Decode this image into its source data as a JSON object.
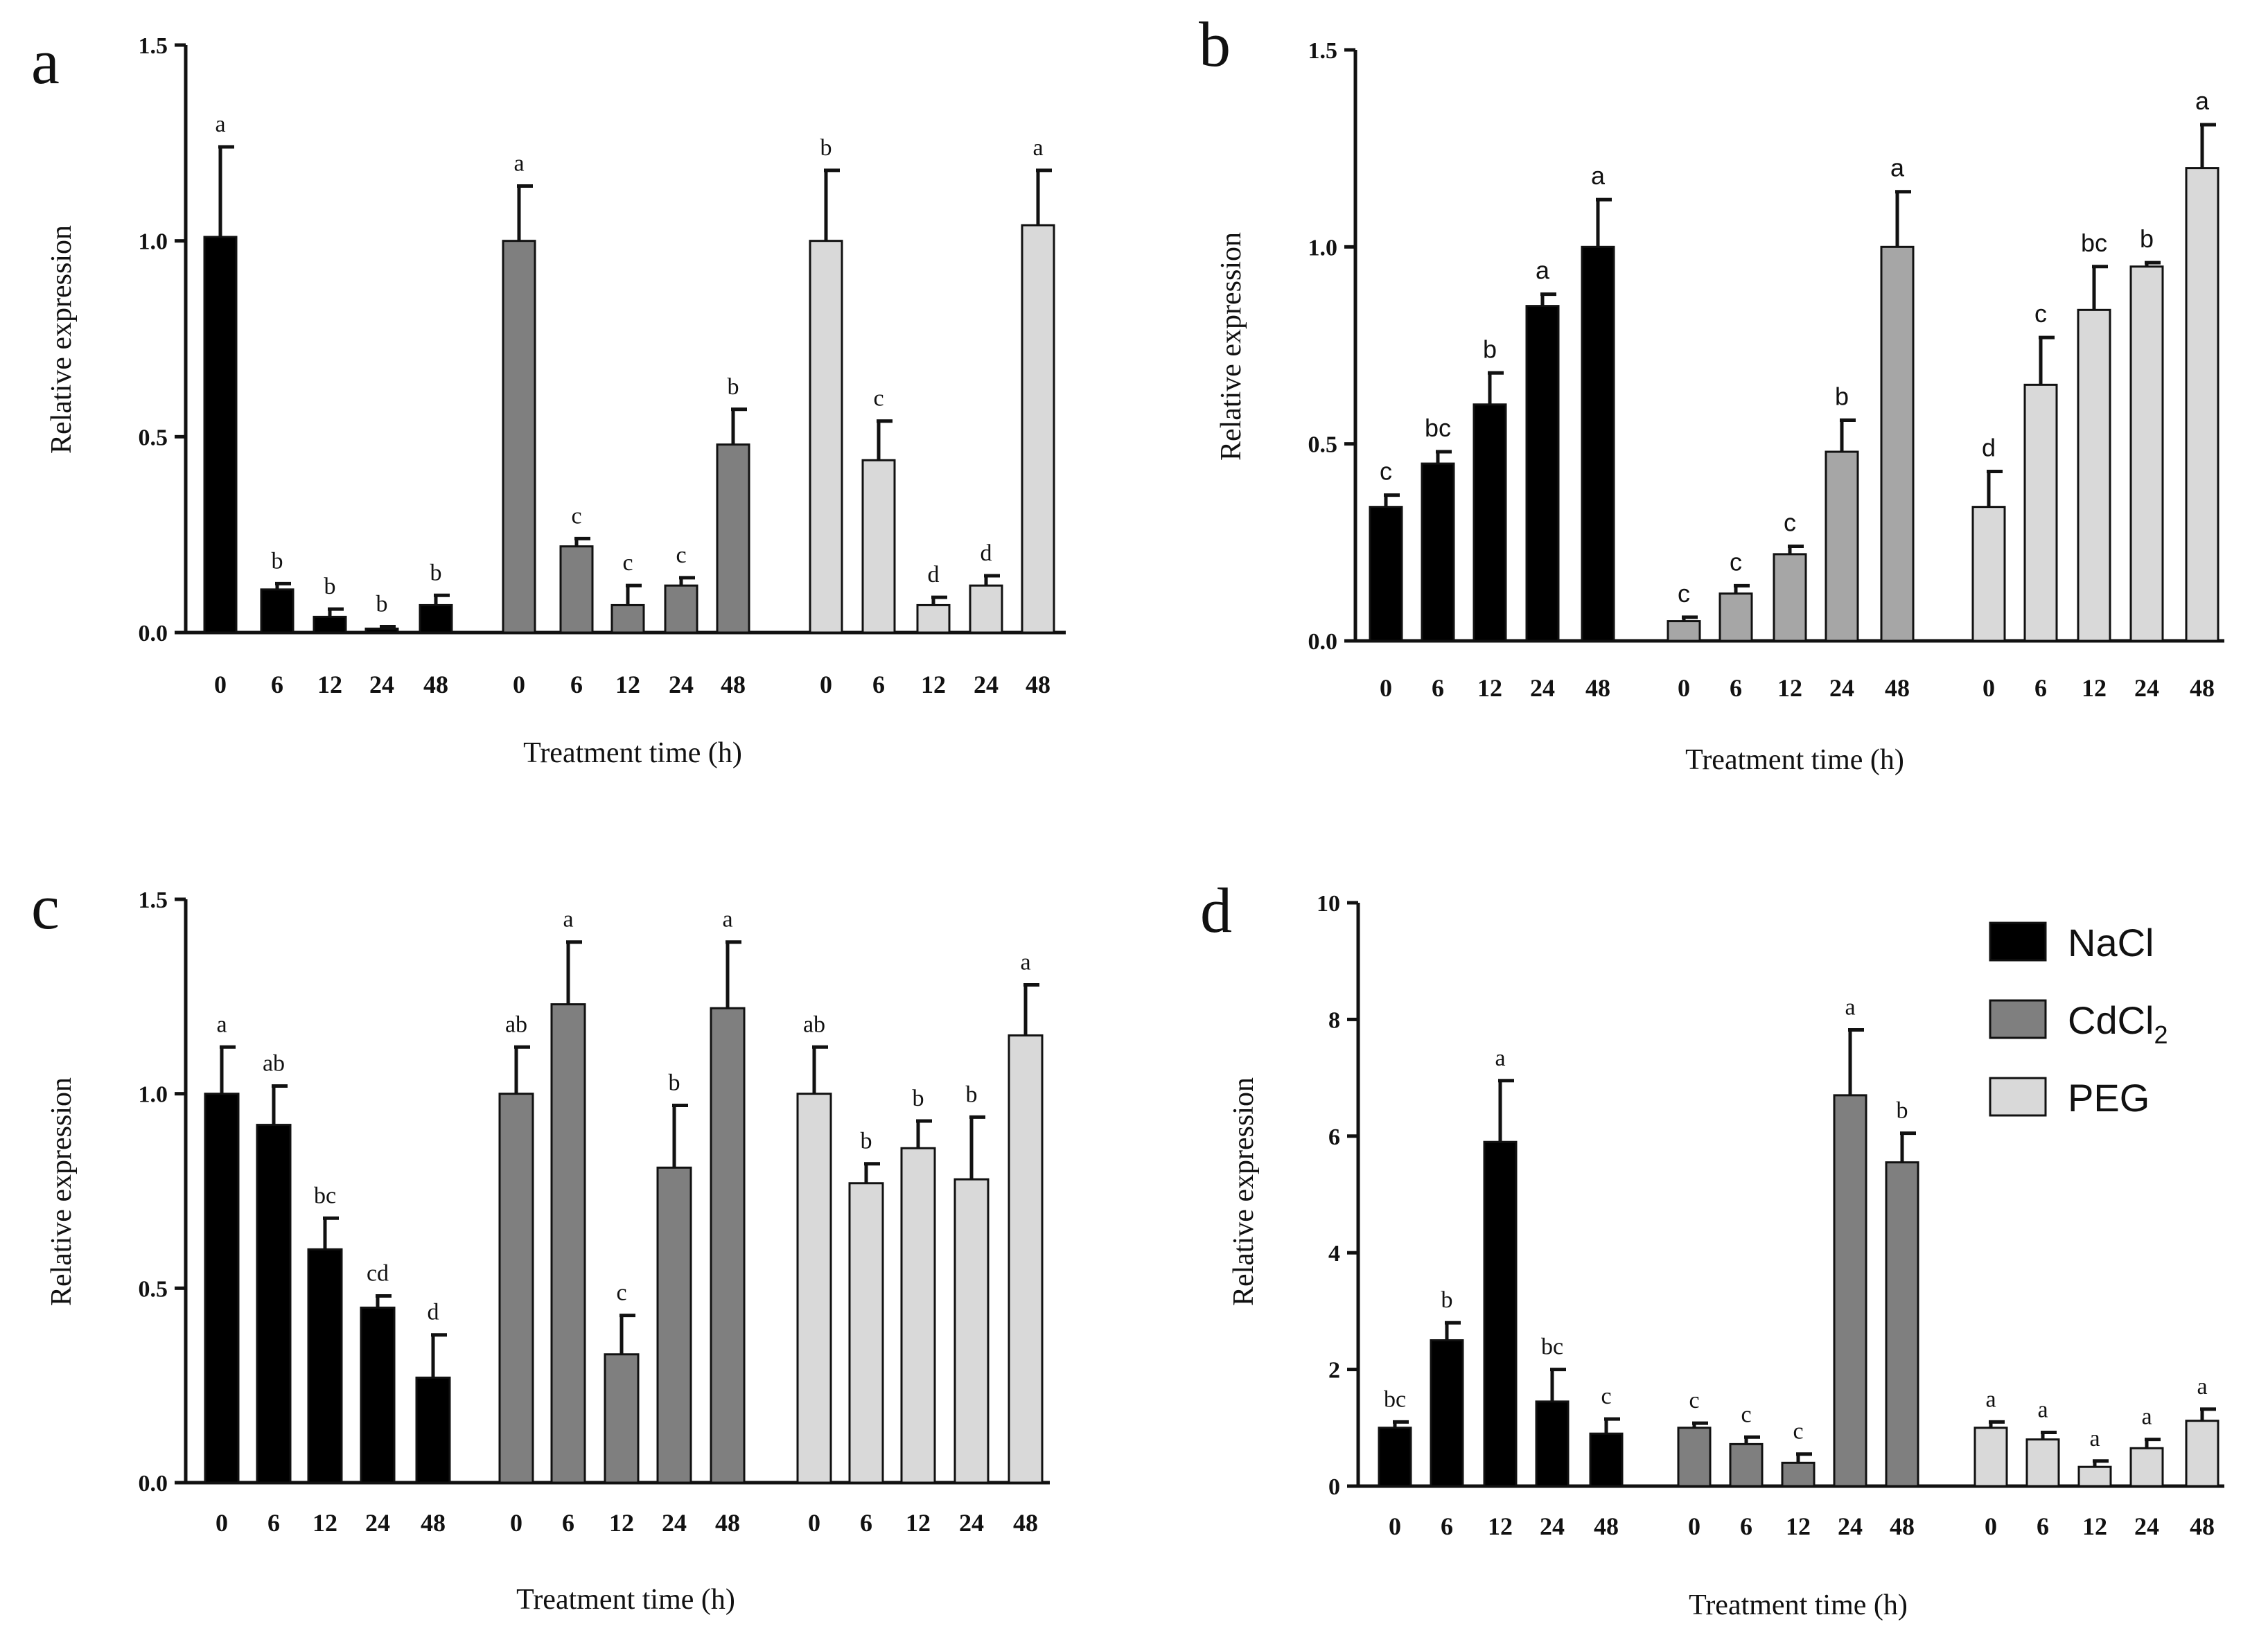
{
  "chart_data": [
    {
      "type": "bar",
      "panel_label": "a",
      "ylabel": "Relative expression",
      "xlabel": "Treatment time (h)",
      "ylim": [
        0,
        1.5
      ],
      "yticks": [
        "0.0",
        "0.5",
        "1.0",
        "1.5"
      ],
      "categories": [
        "0",
        "6",
        "12",
        "24",
        "48"
      ],
      "sig_font": "serif",
      "series": [
        {
          "name": "NaCl",
          "values": [
            1.01,
            0.11,
            0.04,
            0.01,
            0.07
          ],
          "errors": [
            0.23,
            0.015,
            0.02,
            0.005,
            0.025
          ],
          "letters": [
            "a",
            "b",
            "b",
            "b",
            "b"
          ]
        },
        {
          "name": "CdCl2",
          "values": [
            1.0,
            0.22,
            0.07,
            0.12,
            0.48
          ],
          "errors": [
            0.14,
            0.02,
            0.05,
            0.02,
            0.09
          ],
          "letters": [
            "a",
            "c",
            "c",
            "c",
            "b"
          ]
        },
        {
          "name": "PEG",
          "values": [
            1.0,
            0.44,
            0.07,
            0.12,
            1.04
          ],
          "errors": [
            0.18,
            0.1,
            0.02,
            0.025,
            0.14
          ],
          "letters": [
            "b",
            "c",
            "d",
            "d",
            "a"
          ]
        }
      ]
    },
    {
      "type": "bar",
      "panel_label": "b",
      "ylabel": "Relative expression",
      "xlabel": "Treatment time (h)",
      "ylim": [
        0,
        1.5
      ],
      "yticks": [
        "0.0",
        "0.5",
        "1.0",
        "1.5"
      ],
      "categories": [
        "0",
        "6",
        "12",
        "24",
        "48"
      ],
      "sig_font": "sans",
      "series": [
        {
          "name": "NaCl",
          "values": [
            0.34,
            0.45,
            0.6,
            0.85,
            1.0
          ],
          "errors": [
            0.03,
            0.03,
            0.08,
            0.03,
            0.12
          ],
          "letters": [
            "c",
            "bc",
            "b",
            "a",
            "a"
          ]
        },
        {
          "name": "CdCl2",
          "values": [
            0.05,
            0.12,
            0.22,
            0.48,
            1.0
          ],
          "errors": [
            0.01,
            0.02,
            0.02,
            0.08,
            0.14
          ],
          "letters": [
            "c",
            "c",
            "c",
            "b",
            "a"
          ]
        },
        {
          "name": "PEG",
          "values": [
            0.34,
            0.65,
            0.84,
            0.95,
            1.2
          ],
          "errors": [
            0.09,
            0.12,
            0.11,
            0.01,
            0.11
          ],
          "letters": [
            "d",
            "c",
            "bc",
            "b",
            "a"
          ]
        }
      ]
    },
    {
      "type": "bar",
      "panel_label": "c",
      "ylabel": "Relative expression",
      "xlabel": "Treatment time (h)",
      "ylim": [
        0,
        1.5
      ],
      "yticks": [
        "0.0",
        "0.5",
        "1.0",
        "1.5"
      ],
      "categories": [
        "0",
        "6",
        "12",
        "24",
        "48"
      ],
      "sig_font": "serif",
      "series": [
        {
          "name": "NaCl",
          "values": [
            1.0,
            0.92,
            0.6,
            0.45,
            0.27
          ],
          "errors": [
            0.12,
            0.1,
            0.08,
            0.03,
            0.11
          ],
          "letters": [
            "a",
            "ab",
            "bc",
            "cd",
            "d"
          ]
        },
        {
          "name": "CdCl2",
          "values": [
            1.0,
            1.23,
            0.33,
            0.81,
            1.22
          ],
          "errors": [
            0.12,
            0.16,
            0.1,
            0.16,
            0.17
          ],
          "letters": [
            "ab",
            "a",
            "c",
            "b",
            "a"
          ]
        },
        {
          "name": "PEG",
          "values": [
            1.0,
            0.77,
            0.86,
            0.78,
            1.15
          ],
          "errors": [
            0.12,
            0.05,
            0.07,
            0.16,
            0.13
          ],
          "letters": [
            "ab",
            "b",
            "b",
            "b",
            "a"
          ]
        }
      ]
    },
    {
      "type": "bar",
      "panel_label": "d",
      "ylabel": "Relative expression",
      "xlabel": "Treatment time (h)",
      "ylim": [
        0,
        10
      ],
      "yticks": [
        "0",
        "2",
        "4",
        "6",
        "8",
        "10"
      ],
      "categories": [
        "0",
        "6",
        "12",
        "24",
        "48"
      ],
      "sig_font": "serif",
      "series": [
        {
          "name": "NaCl",
          "values": [
            1.0,
            2.5,
            5.9,
            1.45,
            0.9
          ],
          "errors": [
            0.1,
            0.3,
            1.05,
            0.55,
            0.25
          ],
          "letters": [
            "bc",
            "b",
            "a",
            "bc",
            "c"
          ]
        },
        {
          "name": "CdCl2",
          "values": [
            1.0,
            0.72,
            0.4,
            6.7,
            5.55
          ],
          "errors": [
            0.08,
            0.12,
            0.15,
            1.12,
            0.5
          ],
          "letters": [
            "c",
            "c",
            "c",
            "a",
            "b"
          ]
        },
        {
          "name": "PEG",
          "values": [
            1.0,
            0.8,
            0.33,
            0.65,
            1.12
          ],
          "errors": [
            0.1,
            0.12,
            0.1,
            0.15,
            0.2
          ],
          "letters": [
            "a",
            "a",
            "a",
            "a",
            "a"
          ]
        }
      ]
    }
  ],
  "legend": {
    "items": [
      {
        "label": "NaCl",
        "sub": "",
        "color": "#000000"
      },
      {
        "label": "CdCl",
        "sub": "2",
        "color": "#7f7f7f"
      },
      {
        "label": "PEG",
        "sub": "",
        "color": "#d9d9d9"
      }
    ]
  },
  "colors": {
    "NaCl": "#000000",
    "CdCl2": "#7f7f7f",
    "PEG": "#d9d9d9",
    "CdCl2_light": "#a6a6a6"
  }
}
